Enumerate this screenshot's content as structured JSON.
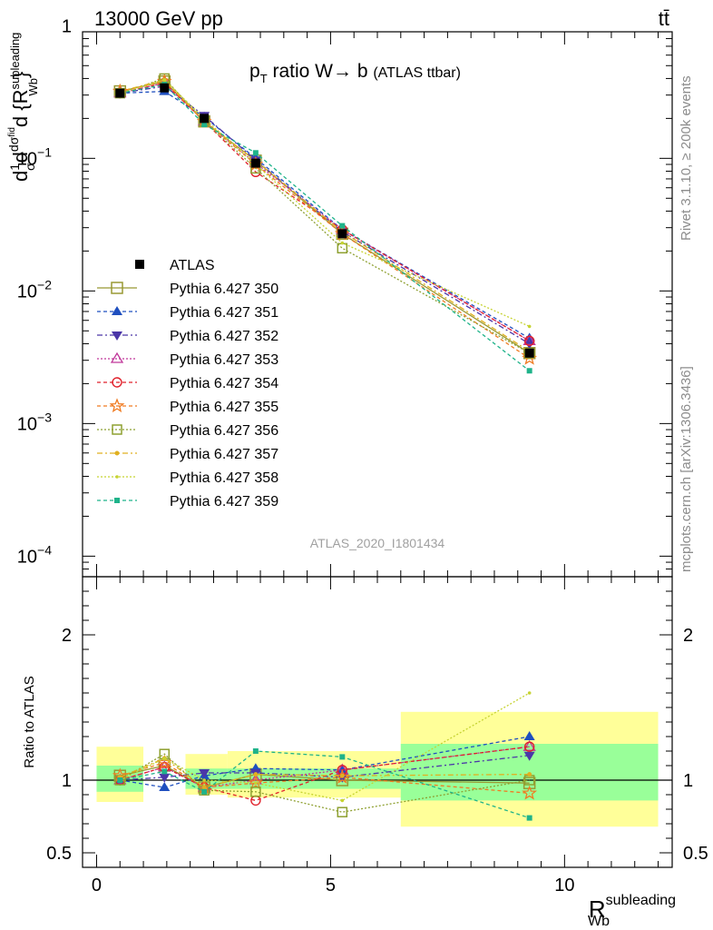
{
  "header": {
    "energy_label": "13000 GeV pp",
    "process_label": "tt̄"
  },
  "side_labels": {
    "rivet": "Rivet 3.1.10, ≥ 200k events",
    "mcplots": "mcplots.cern.ch [arXiv:1306.3436]"
  },
  "chart_data": [
    {
      "type": "line",
      "panel": "main",
      "title": "p_T ratio W → b (ATLAS ttbar)",
      "title_parts": {
        "a": "p",
        "sub": "T",
        "b": " ratio W",
        "arrow": "→",
        "c": " b ",
        "d": "(ATLAS ttbar)"
      },
      "ylabel_parts": {
        "a": "d",
        "b": "1",
        "c": "σ",
        "d": "d",
        "e": "dσ",
        "f": "fid",
        "g": "d {R",
        "h": "subleading",
        "i": "Wb",
        "j": "}"
      },
      "watermark": "ATLAS_2020_I1801434",
      "yscale": "log",
      "ylim": [
        7e-05,
        0.9
      ],
      "xlim": [
        -0.3,
        12.3
      ],
      "yticks": [
        0.0001,
        0.001,
        0.01,
        0.1,
        1
      ],
      "ytick_labels": [
        {
          "base": "10",
          "exp": "−4"
        },
        {
          "base": "10",
          "exp": "−3"
        },
        {
          "base": "10",
          "exp": "−2"
        },
        {
          "base": "10",
          "exp": "−1"
        },
        {
          "base": "1",
          "exp": ""
        }
      ],
      "legend_position": "middle-left",
      "x": [
        0.5,
        1.45,
        2.3,
        3.4,
        5.25,
        9.25
      ],
      "series": [
        {
          "name": "ATLAS",
          "color": "#000000",
          "marker": "filled-square",
          "values": [
            0.31,
            0.34,
            0.2,
            0.092,
            0.027,
            0.0034
          ]
        },
        {
          "name": "Pythia 6.427 350",
          "color": "#999933",
          "marker": "open-square-large",
          "dash": "solid",
          "values": [
            0.32,
            0.38,
            0.19,
            0.096,
            0.027,
            0.0034
          ]
        },
        {
          "name": "Pythia 6.427 351",
          "color": "#1f4fbf",
          "marker": "filled-triangle-up",
          "dash": "4,3",
          "values": [
            0.31,
            0.32,
            0.205,
            0.1,
            0.029,
            0.0044
          ]
        },
        {
          "name": "Pythia 6.427 352",
          "color": "#4b36a8",
          "marker": "filled-triangle-down",
          "dash": "6,3,2,3",
          "values": [
            0.31,
            0.35,
            0.21,
            0.097,
            0.028,
            0.004
          ]
        },
        {
          "name": "Pythia 6.427 353",
          "color": "#c0379a",
          "marker": "open-triangle-up",
          "dash": "2,2",
          "values": [
            0.31,
            0.37,
            0.19,
            0.092,
            0.029,
            0.0042
          ]
        },
        {
          "name": "Pythia 6.427 354",
          "color": "#e0202a",
          "marker": "open-circle",
          "dash": "4,3",
          "values": [
            0.31,
            0.37,
            0.19,
            0.079,
            0.029,
            0.0042
          ]
        },
        {
          "name": "Pythia 6.427 355",
          "color": "#f07b22",
          "marker": "open-star",
          "dash": "4,3",
          "values": [
            0.32,
            0.38,
            0.19,
            0.09,
            0.027,
            0.0031
          ]
        },
        {
          "name": "Pythia 6.427 356",
          "color": "#8ea030",
          "marker": "open-square",
          "dash": "2,2",
          "values": [
            0.31,
            0.4,
            0.19,
            0.084,
            0.021,
            0.0034
          ]
        },
        {
          "name": "Pythia 6.427 357",
          "color": "#e0b020",
          "marker": "dot",
          "dash": "6,3,2,3",
          "values": [
            0.32,
            0.39,
            0.19,
            0.096,
            0.028,
            0.0035
          ]
        },
        {
          "name": "Pythia 6.427 358",
          "color": "#c6d332",
          "marker": "dot-small",
          "dash": "2,2",
          "values": [
            0.31,
            0.39,
            0.2,
            0.09,
            0.023,
            0.0054
          ]
        },
        {
          "name": "Pythia 6.427 359",
          "color": "#1fb38a",
          "marker": "filled-square-small",
          "dash": "4,3",
          "values": [
            0.31,
            0.36,
            0.18,
            0.11,
            0.031,
            0.0025
          ]
        }
      ]
    },
    {
      "type": "line",
      "panel": "ratio",
      "ylabel": "Ratio to ATLAS",
      "ylim": [
        0.4,
        2.4
      ],
      "xlim": [
        -0.3,
        12.3
      ],
      "yticks": [
        0.5,
        1,
        2
      ],
      "ytick_labels": [
        "0.5",
        "1",
        "2"
      ],
      "xticks": [
        0,
        5,
        10
      ],
      "xtick_labels": [
        "0",
        "5",
        "10"
      ],
      "xlabel_parts": {
        "a": "R",
        "sup": "subleading",
        "sub": "Wb"
      },
      "bins": [
        {
          "lo": 0.0,
          "hi": 1.0,
          "inner": [
            0.92,
            1.1
          ],
          "outer": [
            0.85,
            1.23
          ]
        },
        {
          "lo": 1.9,
          "hi": 2.8,
          "inner": [
            0.94,
            1.08
          ],
          "outer": [
            0.9,
            1.18
          ]
        },
        {
          "lo": 2.8,
          "hi": 6.5,
          "inner": [
            0.94,
            1.08
          ],
          "outer": [
            0.88,
            1.2
          ]
        },
        {
          "lo": 6.5,
          "hi": 12.0,
          "inner": [
            0.86,
            1.25
          ],
          "outer": [
            0.68,
            1.47
          ]
        }
      ],
      "x": [
        0.5,
        1.45,
        2.3,
        3.4,
        5.25,
        9.25
      ],
      "series": [
        {
          "name": "Pythia 6.427 350",
          "values": [
            1.03,
            1.1,
            0.95,
            1.04,
            1.0,
            0.98
          ]
        },
        {
          "name": "Pythia 6.427 351",
          "values": [
            1.0,
            0.95,
            1.03,
            1.08,
            1.07,
            1.3
          ]
        },
        {
          "name": "Pythia 6.427 352",
          "values": [
            1.0,
            1.02,
            1.05,
            1.05,
            1.02,
            1.17
          ]
        },
        {
          "name": "Pythia 6.427 353",
          "values": [
            1.0,
            1.09,
            0.95,
            1.0,
            1.07,
            1.23
          ]
        },
        {
          "name": "Pythia 6.427 354",
          "values": [
            1.0,
            1.09,
            0.95,
            0.86,
            1.07,
            1.23
          ]
        },
        {
          "name": "Pythia 6.427 355",
          "values": [
            1.03,
            1.12,
            0.95,
            0.98,
            1.02,
            0.91
          ]
        },
        {
          "name": "Pythia 6.427 356",
          "values": [
            1.0,
            1.18,
            0.93,
            0.92,
            0.78,
            1.0
          ]
        },
        {
          "name": "Pythia 6.427 357",
          "values": [
            1.02,
            1.15,
            0.95,
            1.04,
            1.03,
            1.04
          ]
        },
        {
          "name": "Pythia 6.427 358",
          "values": [
            1.0,
            1.15,
            1.0,
            0.98,
            0.86,
            1.6
          ]
        },
        {
          "name": "Pythia 6.427 359",
          "values": [
            1.0,
            1.06,
            0.92,
            1.2,
            1.16,
            0.74
          ]
        }
      ]
    }
  ]
}
